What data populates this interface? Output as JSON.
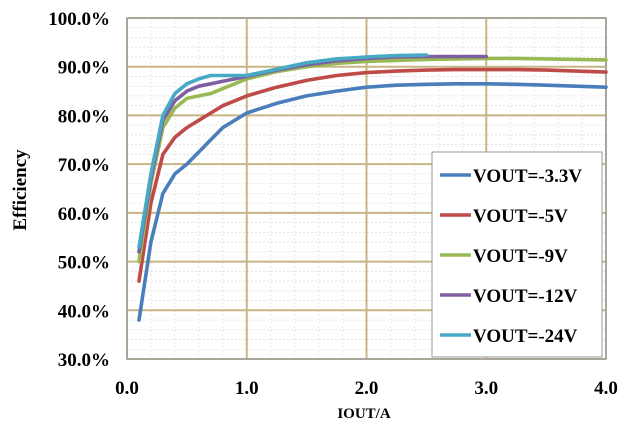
{
  "chart_data": {
    "type": "line",
    "title": "",
    "xlabel": "IOUT/A",
    "ylabel": "Efficiency",
    "xlim": [
      0,
      4
    ],
    "ylim": [
      30,
      100
    ],
    "grid": true,
    "minor_grid": true,
    "legend_position": "bottom-right",
    "x_ticks": [
      0,
      1,
      2,
      3,
      4
    ],
    "x_tick_labels": [
      "0.0",
      "1.0",
      "2.0",
      "3.0",
      "4.0"
    ],
    "y_ticks": [
      30,
      40,
      50,
      60,
      70,
      80,
      90,
      100
    ],
    "y_tick_labels": [
      "30.0%",
      "40.0%",
      "50.0%",
      "60.0%",
      "70.0%",
      "80.0%",
      "90.0%",
      "100.0%"
    ],
    "colors": {
      "major_grid": "#c8b583",
      "minor_grid": "#d8d8d8",
      "frame": "#a0a0a0"
    },
    "series": [
      {
        "name": "VOUT=-3.3V",
        "color": "#4a7ebb",
        "points": [
          [
            0.1,
            38
          ],
          [
            0.2,
            54
          ],
          [
            0.3,
            64
          ],
          [
            0.4,
            68
          ],
          [
            0.5,
            70
          ],
          [
            0.6,
            72.5
          ],
          [
            0.7,
            75
          ],
          [
            0.8,
            77.5
          ],
          [
            1.0,
            80.5
          ],
          [
            1.25,
            82.5
          ],
          [
            1.5,
            84
          ],
          [
            1.75,
            85
          ],
          [
            2.0,
            85.8
          ],
          [
            2.25,
            86.2
          ],
          [
            2.5,
            86.4
          ],
          [
            2.75,
            86.5
          ],
          [
            3.0,
            86.5
          ],
          [
            3.25,
            86.4
          ],
          [
            3.5,
            86.2
          ],
          [
            3.75,
            86.0
          ],
          [
            4.0,
            85.8
          ]
        ]
      },
      {
        "name": "VOUT=-5V",
        "color": "#be4b48",
        "points": [
          [
            0.1,
            46
          ],
          [
            0.2,
            62
          ],
          [
            0.3,
            72
          ],
          [
            0.4,
            75.5
          ],
          [
            0.5,
            77.5
          ],
          [
            0.6,
            79
          ],
          [
            0.7,
            80.5
          ],
          [
            0.8,
            82
          ],
          [
            1.0,
            84
          ],
          [
            1.25,
            85.8
          ],
          [
            1.5,
            87.2
          ],
          [
            1.75,
            88.2
          ],
          [
            2.0,
            88.8
          ],
          [
            2.25,
            89.1
          ],
          [
            2.5,
            89.3
          ],
          [
            2.75,
            89.4
          ],
          [
            3.0,
            89.4
          ],
          [
            3.25,
            89.4
          ],
          [
            3.5,
            89.3
          ],
          [
            3.75,
            89.1
          ],
          [
            4.0,
            88.9
          ]
        ]
      },
      {
        "name": "VOUT=-9V",
        "color": "#98b954",
        "points": [
          [
            0.1,
            50
          ],
          [
            0.2,
            66
          ],
          [
            0.3,
            77.5
          ],
          [
            0.4,
            81.5
          ],
          [
            0.5,
            83.5
          ],
          [
            0.6,
            84
          ],
          [
            0.7,
            84.5
          ],
          [
            0.8,
            85.5
          ],
          [
            1.0,
            87.5
          ],
          [
            1.25,
            89
          ],
          [
            1.5,
            90
          ],
          [
            1.75,
            90.7
          ],
          [
            2.0,
            91.1
          ],
          [
            2.25,
            91.3
          ],
          [
            2.5,
            91.5
          ],
          [
            2.75,
            91.6
          ],
          [
            3.0,
            91.7
          ],
          [
            3.25,
            91.7
          ],
          [
            3.5,
            91.6
          ],
          [
            3.75,
            91.5
          ],
          [
            4.0,
            91.4
          ]
        ]
      },
      {
        "name": "VOUT=-12V",
        "color": "#7d60a0",
        "points": [
          [
            0.1,
            52
          ],
          [
            0.2,
            67
          ],
          [
            0.3,
            79
          ],
          [
            0.4,
            83
          ],
          [
            0.5,
            85
          ],
          [
            0.6,
            86
          ],
          [
            0.7,
            86.5
          ],
          [
            0.8,
            87
          ],
          [
            1.0,
            88
          ],
          [
            1.25,
            89.3
          ],
          [
            1.5,
            90.4
          ],
          [
            1.75,
            91.2
          ],
          [
            2.0,
            91.7
          ],
          [
            2.25,
            92
          ],
          [
            2.5,
            92.1
          ],
          [
            2.75,
            92.1
          ],
          [
            3.0,
            92.1
          ]
        ]
      },
      {
        "name": "VOUT=-24V",
        "color": "#46aac5",
        "points": [
          [
            0.1,
            53
          ],
          [
            0.2,
            68
          ],
          [
            0.3,
            80
          ],
          [
            0.4,
            84.5
          ],
          [
            0.5,
            86.5
          ],
          [
            0.6,
            87.5
          ],
          [
            0.7,
            88.2
          ],
          [
            0.8,
            88.2
          ],
          [
            1.0,
            88.2
          ],
          [
            1.25,
            89.5
          ],
          [
            1.5,
            90.8
          ],
          [
            1.75,
            91.6
          ],
          [
            2.0,
            92
          ],
          [
            2.25,
            92.3
          ],
          [
            2.5,
            92.4
          ]
        ]
      }
    ]
  }
}
